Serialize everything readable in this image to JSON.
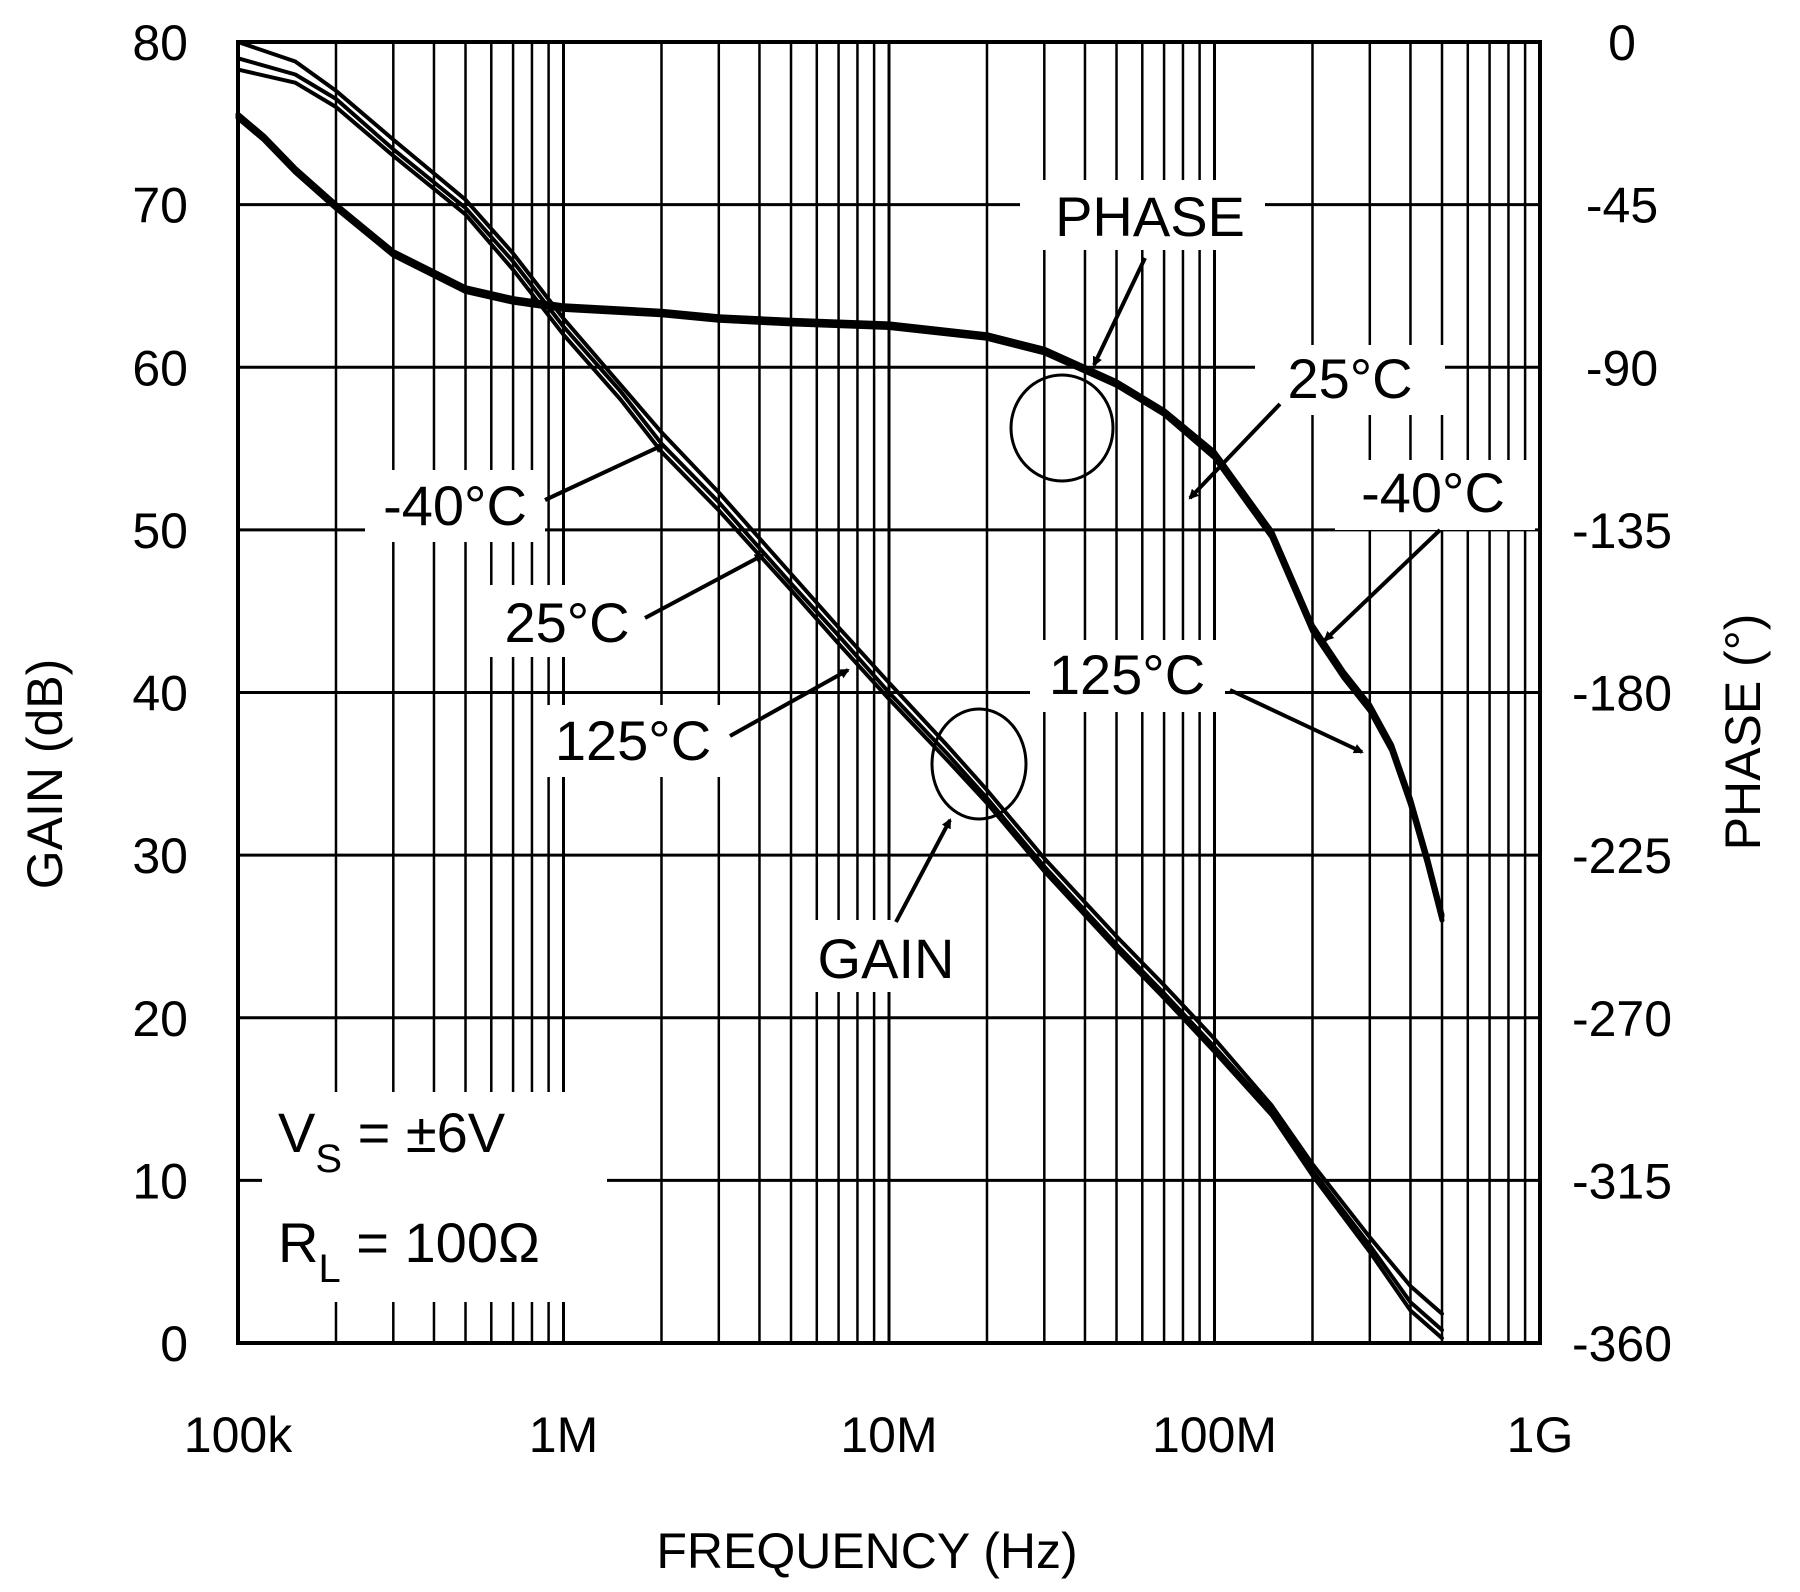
{
  "chart_data": {
    "type": "line",
    "title": "",
    "xlabel": "FREQUENCY (Hz)",
    "ylabel": "GAIN (dB)",
    "y2label": "PHASE (°)",
    "xscale": "log",
    "xlim": [
      100000,
      1000000000
    ],
    "ylim": [
      0,
      80
    ],
    "y2lim": [
      -360,
      0
    ],
    "grid": true,
    "x_ticks": [
      {
        "value": 100000,
        "label": "100k"
      },
      {
        "value": 1000000,
        "label": "1M"
      },
      {
        "value": 10000000,
        "label": "10M"
      },
      {
        "value": 100000000,
        "label": "100M"
      },
      {
        "value": 1000000000,
        "label": "1G"
      }
    ],
    "y_ticks": [
      {
        "value": 0,
        "label": "0"
      },
      {
        "value": 10,
        "label": "10"
      },
      {
        "value": 20,
        "label": "20"
      },
      {
        "value": 30,
        "label": "30"
      },
      {
        "value": 40,
        "label": "40"
      },
      {
        "value": 50,
        "label": "50"
      },
      {
        "value": 60,
        "label": "60"
      },
      {
        "value": 70,
        "label": "70"
      },
      {
        "value": 80,
        "label": "80"
      }
    ],
    "y2_ticks": [
      {
        "value": 0,
        "label": "0"
      },
      {
        "value": -45,
        "label": "-45"
      },
      {
        "value": -90,
        "label": "-90"
      },
      {
        "value": -135,
        "label": "-135"
      },
      {
        "value": -180,
        "label": "-180"
      },
      {
        "value": -225,
        "label": "-225"
      },
      {
        "value": -270,
        "label": "-270"
      },
      {
        "value": -315,
        "label": "-315"
      },
      {
        "value": -360,
        "label": "-360"
      }
    ],
    "series": [
      {
        "name": "GAIN -40°C",
        "axis": "left",
        "x": [
          100000,
          150000,
          200000,
          300000,
          500000,
          700000,
          1000000,
          1500000,
          2000000,
          3000000,
          5000000,
          7000000,
          10000000,
          15000000,
          20000000,
          30000000,
          50000000,
          70000000,
          100000000,
          150000000,
          200000000,
          300000000,
          400000000,
          500000000
        ],
        "y": [
          80,
          78.8,
          77,
          74,
          70.3,
          67,
          63,
          58.9,
          56,
          52.3,
          47.3,
          44,
          40.6,
          36.8,
          34,
          29.8,
          25,
          22,
          18.7,
          14.6,
          11,
          6.5,
          3.5,
          1.8
        ]
      },
      {
        "name": "GAIN 25°C",
        "axis": "left",
        "x": [
          100000,
          150000,
          200000,
          300000,
          500000,
          700000,
          1000000,
          1500000,
          2000000,
          3000000,
          5000000,
          7000000,
          10000000,
          15000000,
          20000000,
          30000000,
          50000000,
          70000000,
          100000000,
          150000000,
          200000000,
          300000000,
          400000000,
          500000000
        ],
        "y": [
          79,
          78,
          76.5,
          73.4,
          69.8,
          66.5,
          62.5,
          58.5,
          55.3,
          51.7,
          46.7,
          43.5,
          40,
          36.3,
          33.5,
          29.3,
          24.5,
          21.5,
          18.2,
          14.3,
          10.6,
          6,
          2.5,
          0.8
        ]
      },
      {
        "name": "GAIN 125°C",
        "axis": "left",
        "x": [
          100000,
          150000,
          200000,
          300000,
          500000,
          700000,
          1000000,
          1500000,
          2000000,
          3000000,
          5000000,
          7000000,
          10000000,
          15000000,
          20000000,
          30000000,
          50000000,
          70000000,
          100000000,
          150000000,
          200000000,
          300000000,
          400000000,
          500000000
        ],
        "y": [
          78.3,
          77.5,
          76,
          73,
          69.4,
          66,
          62,
          58,
          54.8,
          51.2,
          46.3,
          43,
          39.6,
          35.9,
          33.2,
          29,
          24.2,
          21.2,
          17.9,
          14,
          10.3,
          5.6,
          2,
          0.3
        ]
      },
      {
        "name": "PHASE -40°C",
        "axis": "right",
        "x": [
          100000,
          120000,
          150000,
          200000,
          300000,
          500000,
          700000,
          1000000,
          2000000,
          3000000,
          5000000,
          10000000,
          20000000,
          30000000,
          50000000,
          70000000,
          100000000,
          150000000,
          200000000,
          250000000,
          300000000,
          350000000,
          400000000,
          450000000,
          500000000
        ],
        "y": [
          -21,
          -27,
          -36,
          -46,
          -59,
          -69,
          -72,
          -74,
          -75.5,
          -77,
          -78,
          -79,
          -82,
          -86,
          -95,
          -103,
          -115,
          -137,
          -163,
          -176,
          -185,
          -196,
          -211,
          -227,
          -243
        ]
      },
      {
        "name": "PHASE 25°C",
        "axis": "right",
        "x": [
          100000,
          120000,
          150000,
          200000,
          300000,
          500000,
          700000,
          1000000,
          2000000,
          3000000,
          5000000,
          10000000,
          20000000,
          30000000,
          50000000,
          70000000,
          100000000,
          150000000,
          200000000,
          250000000,
          300000000,
          350000000,
          400000000,
          450000000,
          500000000
        ],
        "y": [
          -20.5,
          -26.5,
          -35.5,
          -45.5,
          -58.5,
          -68.5,
          -71.5,
          -73.5,
          -75,
          -76.5,
          -77.5,
          -78.5,
          -81.5,
          -85.5,
          -94.5,
          -102.5,
          -114,
          -136,
          -162,
          -175,
          -184,
          -195,
          -210,
          -226,
          -242
        ]
      },
      {
        "name": "PHASE 125°C",
        "axis": "right",
        "x": [
          100000,
          120000,
          150000,
          200000,
          300000,
          500000,
          700000,
          1000000,
          2000000,
          3000000,
          5000000,
          10000000,
          20000000,
          30000000,
          50000000,
          70000000,
          100000000,
          150000000,
          200000000,
          250000000,
          300000000,
          350000000,
          400000000,
          450000000,
          500000000
        ],
        "y": [
          -20,
          -26,
          -35,
          -45,
          -58,
          -68,
          -71,
          -73,
          -74.5,
          -76,
          -77,
          -78,
          -81,
          -85,
          -94,
          -102,
          -113.5,
          -135.5,
          -161.5,
          -174.5,
          -183.5,
          -194.5,
          -209.5,
          -225.5,
          -241.5
        ]
      }
    ],
    "annotations": {
      "phase": "PHASE",
      "gain": "GAIN",
      "gain_m40": "-40°C",
      "gain_25": "25°C",
      "gain_125": "125°C",
      "phase_25": "25°C",
      "phase_m40": "-40°C",
      "phase_125": "125°C",
      "vs_main": "V",
      "vs_sub": "S",
      "vs_rest": " = ±6V",
      "rl_main": "R",
      "rl_sub": "L",
      "rl_rest": " = 100Ω"
    }
  }
}
